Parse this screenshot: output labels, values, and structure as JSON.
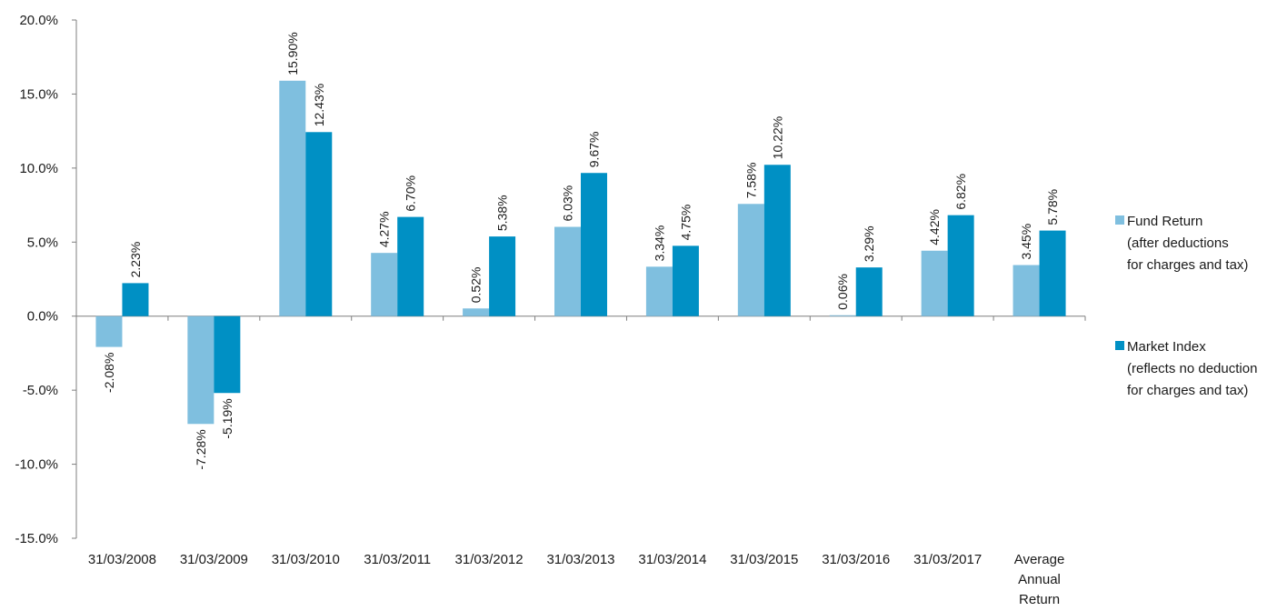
{
  "chart_data": {
    "type": "bar",
    "title": "",
    "xlabel": "",
    "ylabel": "",
    "ylim": [
      -15,
      20
    ],
    "yticks": [
      -15,
      -10,
      -5,
      0,
      5,
      10,
      15,
      20
    ],
    "ytick_labels": [
      "-15.0%",
      "-10.0%",
      "-5.0%",
      "0.0%",
      "5.0%",
      "10.0%",
      "15.0%",
      "20.0%"
    ],
    "grid": false,
    "legend_position": "right",
    "categories": [
      [
        "31/03/2008"
      ],
      [
        "31/03/2009"
      ],
      [
        "31/03/2010"
      ],
      [
        "31/03/2011"
      ],
      [
        "31/03/2012"
      ],
      [
        "31/03/2013"
      ],
      [
        "31/03/2014"
      ],
      [
        "31/03/2015"
      ],
      [
        "31/03/2016"
      ],
      [
        "31/03/2017"
      ],
      [
        "Average",
        "Annual",
        "Return"
      ]
    ],
    "series": [
      {
        "name_lines": [
          "Fund Return",
          "(after deductions",
          "for charges and tax)"
        ],
        "color": "#7fbfdf",
        "values": [
          -2.08,
          -7.28,
          15.9,
          4.27,
          0.52,
          6.03,
          3.34,
          7.58,
          0.06,
          4.42,
          3.45
        ],
        "labels": [
          "-2.08%",
          "-7.28%",
          "15.90%",
          "4.27%",
          "0.52%",
          "6.03%",
          "3.34%",
          "7.58%",
          "0.06%",
          "4.42%",
          "3.45%"
        ]
      },
      {
        "name_lines": [
          "Market Index",
          "(reflects no deduction",
          "for charges and tax)"
        ],
        "color": "#0090c4",
        "values": [
          2.23,
          -5.19,
          12.43,
          6.7,
          5.38,
          9.67,
          4.75,
          10.22,
          3.29,
          6.82,
          5.78
        ],
        "labels": [
          "2.23%",
          "-5.19%",
          "12.43%",
          "6.70%",
          "5.38%",
          "9.67%",
          "4.75%",
          "10.22%",
          "3.29%",
          "6.82%",
          "5.78%"
        ]
      }
    ]
  }
}
